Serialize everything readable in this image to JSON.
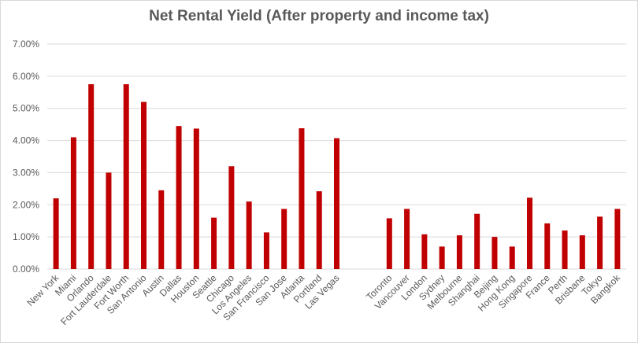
{
  "chart_data": {
    "type": "bar",
    "title": "Net Rental Yield (After property and income tax)",
    "xlabel": "",
    "ylabel": "",
    "ylim": [
      0,
      7
    ],
    "ytick_labels": [
      "0.00%",
      "1.00%",
      "2.00%",
      "3.00%",
      "4.00%",
      "5.00%",
      "6.00%",
      "7.00%"
    ],
    "grid": true,
    "legend": "none",
    "bar_color": "#c00000",
    "categories": [
      "New York",
      "Miami",
      "Orlando",
      "Fort Lauderdale",
      "Fort Worth",
      "San Antonio",
      "Austin",
      "Dallas",
      "Houston",
      "Seattle",
      "Chicago",
      "Los Angeles",
      "San Francisco",
      "San Jose",
      "Atlanta",
      "Portland",
      "Las Vegas",
      "",
      "",
      "Toronto",
      "Vancouver",
      "London",
      "Sydney",
      "Melbourne",
      "Shanghai",
      "Beijing",
      "Hong Kong",
      "Singapore",
      "France",
      "Perth",
      "Brisbane",
      "Tokyo",
      "Bangkok"
    ],
    "values": [
      2.2,
      4.1,
      5.75,
      3.0,
      5.75,
      5.2,
      2.45,
      4.45,
      4.37,
      1.6,
      3.2,
      2.1,
      1.14,
      1.87,
      4.38,
      2.42,
      4.07,
      null,
      null,
      1.58,
      1.87,
      1.08,
      0.7,
      1.05,
      1.72,
      1.0,
      0.7,
      2.22,
      1.42,
      1.2,
      1.05,
      1.63,
      1.87
    ]
  }
}
